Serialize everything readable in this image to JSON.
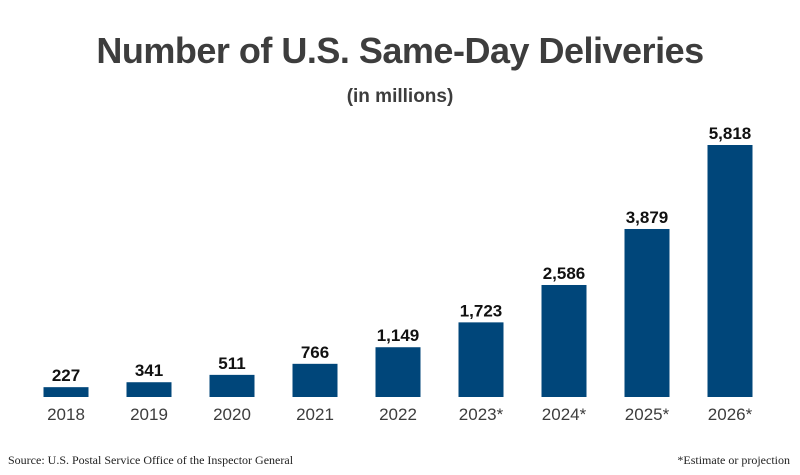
{
  "chart_data": {
    "type": "bar",
    "title": "Number of U.S. Same-Day Deliveries",
    "subtitle": "(in millions)",
    "categories": [
      "2018",
      "2019",
      "2020",
      "2021",
      "2022",
      "2023*",
      "2024*",
      "2025*",
      "2026*"
    ],
    "values": [
      227,
      341,
      511,
      766,
      1149,
      1723,
      2586,
      3879,
      5818
    ],
    "value_labels": [
      "227",
      "341",
      "511",
      "766",
      "1,149",
      "1,723",
      "2,586",
      "3,879",
      "5,818"
    ],
    "bar_color": "#00467a",
    "ylim": [
      0,
      5818
    ],
    "grid": false
  },
  "footer": {
    "source": "Source: U.S. Postal Service Office of the Inspector General",
    "note": "*Estimate or projection"
  }
}
